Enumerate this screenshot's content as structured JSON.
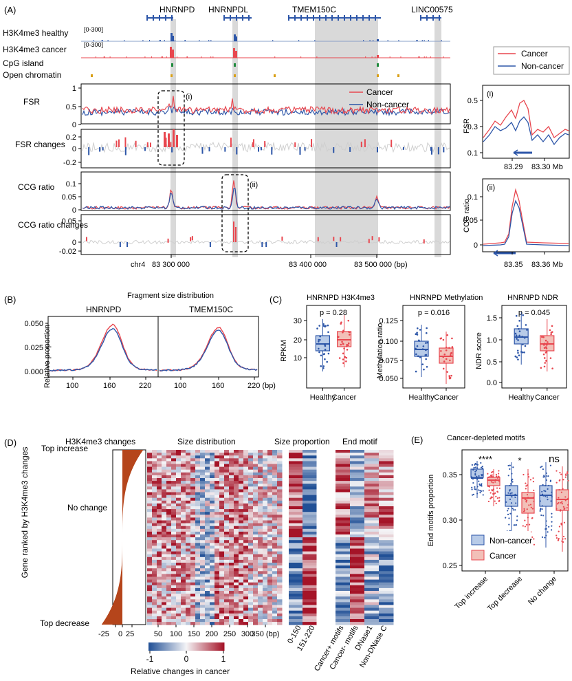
{
  "colors": {
    "cancer": "#e8474f",
    "noncancer": "#2d56a8",
    "grey": "#cfcfcf",
    "shade": "#d9d9d9",
    "brown": "#b5451b"
  },
  "panelA": {
    "label": "(A)",
    "genes": [
      "HNRNPD",
      "HNRNPDL",
      "TMEM150C",
      "LINC00575"
    ],
    "tracks": [
      "H3K4me3 healthy",
      "H3K4me3 cancer",
      "CpG island",
      "Open chromatin"
    ],
    "track_ranges": [
      "[0-300]",
      "[0-300]"
    ],
    "rows": [
      {
        "name": "FSR",
        "ticks": [
          "0",
          "0.5",
          "1"
        ]
      },
      {
        "name": "FSR changes",
        "ticks": [
          "0.2",
          "0",
          "-0.2"
        ]
      },
      {
        "name": "CCG ratio",
        "ticks": [
          "0.1",
          "0.05",
          "0"
        ]
      },
      {
        "name": "CCG ratio\nchanges",
        "ticks": [
          "0.05",
          "0",
          "-0.02"
        ]
      }
    ],
    "legend": [
      "Cancer",
      "Non-cancer"
    ],
    "xaxis": [
      "chr4",
      "83 300 000",
      "83 400 000",
      "83 500 000 (bp)"
    ],
    "callouts": [
      "(i)",
      "(ii)"
    ],
    "inset_i": {
      "tag": "(i)",
      "ylabel": "FSR",
      "yticks": [
        "0.5",
        "0.3",
        "0.1"
      ],
      "xticks": [
        "83.29",
        "83.30 Mb"
      ]
    },
    "inset_ii": {
      "tag": "(ii)",
      "ylabel": "CCG ratio",
      "yticks": [
        "0.1",
        "0.05",
        "0"
      ],
      "xticks": [
        "83.35",
        "83.36 Mb"
      ]
    }
  },
  "panelB": {
    "label": "(B)",
    "title": "Fragment size distribution",
    "ylabel": "Relative proportion",
    "subtitles": [
      "HNRNPD",
      "TMEM150C"
    ],
    "yticks": [
      "0.050",
      "0.025",
      "0.000"
    ],
    "xticks_left": [
      "100",
      "160",
      "220"
    ],
    "xticks_right": [
      "100",
      "160",
      "220 (bp)"
    ]
  },
  "panelC": {
    "label": "(C)",
    "plots": [
      {
        "title": "HNRNPD H3K4me3",
        "ylabel": "RPKM",
        "p": "p = 0.28",
        "yticks": [
          "30",
          "20",
          "10"
        ],
        "xticks": [
          "Healthy",
          "Cancer"
        ]
      },
      {
        "title": "HNRNPD Methylation",
        "ylabel": "Methylation ratio",
        "p": "p = 0.016",
        "yticks": [
          "0.125",
          "0.100",
          "0.075",
          "0.050"
        ],
        "xticks": [
          "Healthy",
          "Cancer"
        ]
      },
      {
        "title": "HNRNPD NDR",
        "ylabel": "NDR score",
        "p": "p = 0.045",
        "yticks": [
          "1.5",
          "1.0",
          "0.5",
          "0.0"
        ],
        "xticks": [
          "Healthy",
          "Cancer"
        ]
      }
    ]
  },
  "panelD": {
    "label": "(D)",
    "titles": [
      "H3K4me3 changes",
      "Size distribution",
      "Size proportion",
      "End motif"
    ],
    "ylabel": "Gene ranked by H3K4me3 changes",
    "rank_labels": [
      "Top increase",
      "No change",
      "Top decrease"
    ],
    "bar_xticks": [
      "-25",
      "0",
      "25"
    ],
    "size_xticks": [
      "50",
      "100",
      "150",
      "200",
      "250",
      "300",
      "350 (bp)"
    ],
    "prop_cols": [
      "0-150",
      "151-220"
    ],
    "motif_cols": [
      "Cancer+ motifs",
      "Cancer- motifs",
      "DNase1",
      "Non-DNase C"
    ],
    "colorbar_ticks": [
      "-1",
      "0",
      "1"
    ],
    "colorbar_label": "Relative changes in cancer"
  },
  "panelE": {
    "label": "(E)",
    "title": "Cancer-depleted motifs",
    "ylabel": "End motifs proportion",
    "yticks": [
      "0.35",
      "0.30",
      "0.25"
    ],
    "sig": [
      "****",
      "*",
      "ns"
    ],
    "groups": [
      "Top increase",
      "Top decrease",
      "No change"
    ],
    "legend": [
      "Non-cancer",
      "Cancer"
    ]
  }
}
